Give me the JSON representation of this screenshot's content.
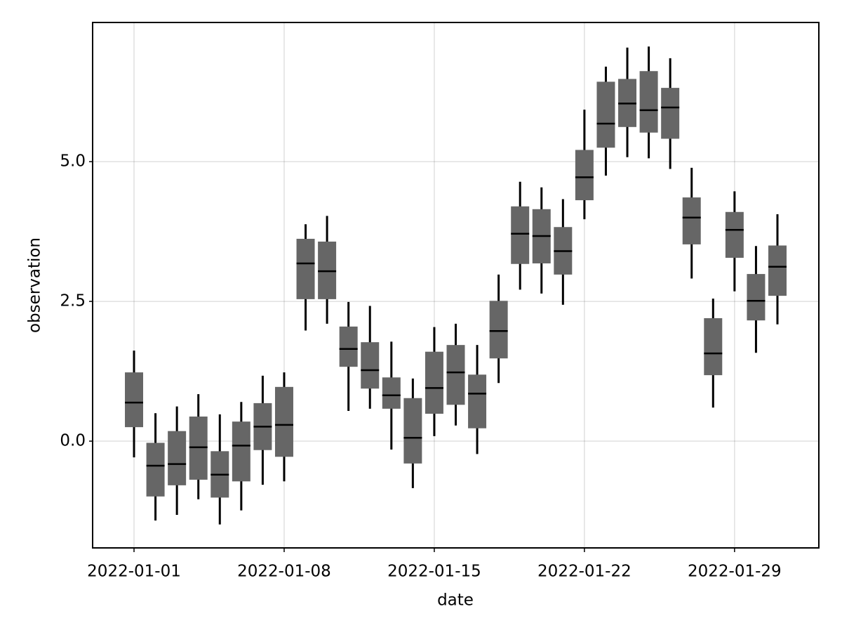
{
  "chart_data": {
    "type": "boxplot",
    "x_label": "date",
    "y_label": "observation",
    "x": [
      "2022-01-01",
      "2022-01-02",
      "2022-01-03",
      "2022-01-04",
      "2022-01-05",
      "2022-01-06",
      "2022-01-07",
      "2022-01-08",
      "2022-01-09",
      "2022-01-10",
      "2022-01-11",
      "2022-01-12",
      "2022-01-13",
      "2022-01-14",
      "2022-01-15",
      "2022-01-16",
      "2022-01-17",
      "2022-01-18",
      "2022-01-19",
      "2022-01-20",
      "2022-01-21",
      "2022-01-22",
      "2022-01-23",
      "2022-01-24",
      "2022-01-25",
      "2022-01-26",
      "2022-01-27",
      "2022-01-28",
      "2022-01-29",
      "2022-01-30",
      "2022-01-31"
    ],
    "low": [
      -0.29,
      -1.42,
      -1.32,
      -1.04,
      -1.49,
      -1.24,
      -0.78,
      -0.72,
      1.98,
      2.1,
      0.54,
      0.58,
      -0.15,
      -0.84,
      0.09,
      0.28,
      -0.23,
      1.04,
      2.71,
      2.64,
      2.44,
      3.97,
      4.75,
      5.08,
      5.06,
      4.87,
      2.91,
      0.6,
      2.68,
      1.58,
      2.09
    ],
    "q1": [
      0.25,
      -0.99,
      -0.79,
      -0.69,
      -1.01,
      -0.72,
      -0.16,
      -0.28,
      2.54,
      2.54,
      1.33,
      0.94,
      0.58,
      -0.4,
      0.49,
      0.65,
      0.23,
      1.48,
      3.17,
      3.18,
      2.98,
      4.31,
      5.25,
      5.62,
      5.52,
      5.41,
      3.52,
      1.18,
      3.28,
      2.16,
      2.6
    ],
    "median": [
      0.69,
      -0.44,
      -0.41,
      -0.11,
      -0.6,
      -0.08,
      0.26,
      0.29,
      3.18,
      3.04,
      1.65,
      1.27,
      0.82,
      0.06,
      0.95,
      1.23,
      0.85,
      1.97,
      3.71,
      3.67,
      3.4,
      4.72,
      5.68,
      6.04,
      5.92,
      5.97,
      4.0,
      1.57,
      3.78,
      2.51,
      3.12
    ],
    "q3": [
      1.23,
      -0.03,
      0.18,
      0.44,
      -0.18,
      0.35,
      0.68,
      0.97,
      3.62,
      3.57,
      2.05,
      1.77,
      1.14,
      0.77,
      1.6,
      1.72,
      1.19,
      2.51,
      4.2,
      4.15,
      3.83,
      5.21,
      6.43,
      6.48,
      6.62,
      6.32,
      4.36,
      2.2,
      4.1,
      2.99,
      3.5
    ],
    "high": [
      1.62,
      0.5,
      0.62,
      0.84,
      0.48,
      0.7,
      1.17,
      1.23,
      3.88,
      4.03,
      2.49,
      2.42,
      1.78,
      1.12,
      2.04,
      2.1,
      1.72,
      2.98,
      4.64,
      4.54,
      4.33,
      5.93,
      6.7,
      7.04,
      7.06,
      6.85,
      4.89,
      2.55,
      4.47,
      3.49,
      4.06
    ],
    "color": "#666666",
    "median_color": "#000000",
    "xlim": [
      "2021-12-30T01:40",
      "2022-02-01T22:20"
    ],
    "xticks": [
      "2022-01-01",
      "2022-01-08",
      "2022-01-15",
      "2022-01-22",
      "2022-01-29"
    ],
    "ylim": [
      -1.91,
      7.49
    ],
    "yticks": [
      {
        "value": 0,
        "label": "0.0"
      },
      2.5,
      {
        "value": 5,
        "label": "5.0"
      }
    ],
    "grid": true
  }
}
